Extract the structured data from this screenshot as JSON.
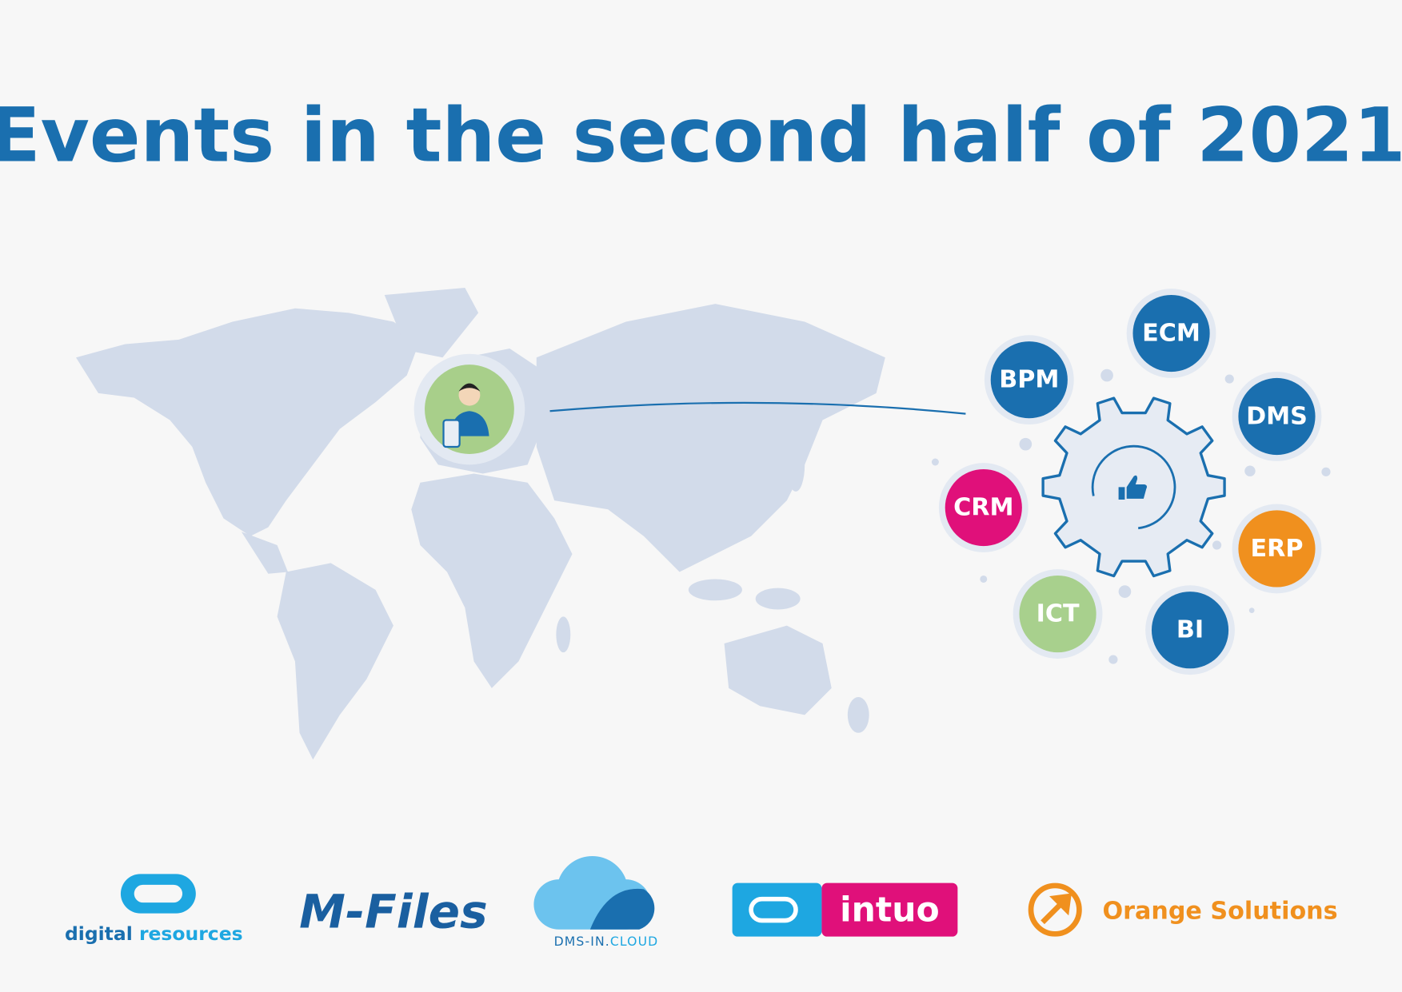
{
  "title": "Events in the second half of 2021",
  "topics": [
    "ECM",
    "BPM",
    "DMS",
    "CRM",
    "ERP",
    "ICT",
    "BI"
  ],
  "logos": {
    "digital_resources": {
      "word1": "digital",
      "word2": "resources"
    },
    "m_files": "M-Files",
    "dms_in_cloud": {
      "part1": "DMS-IN.",
      "part2": "CLOUD"
    },
    "intuo": "intuo",
    "orange_solutions": "Orange Solutions"
  }
}
